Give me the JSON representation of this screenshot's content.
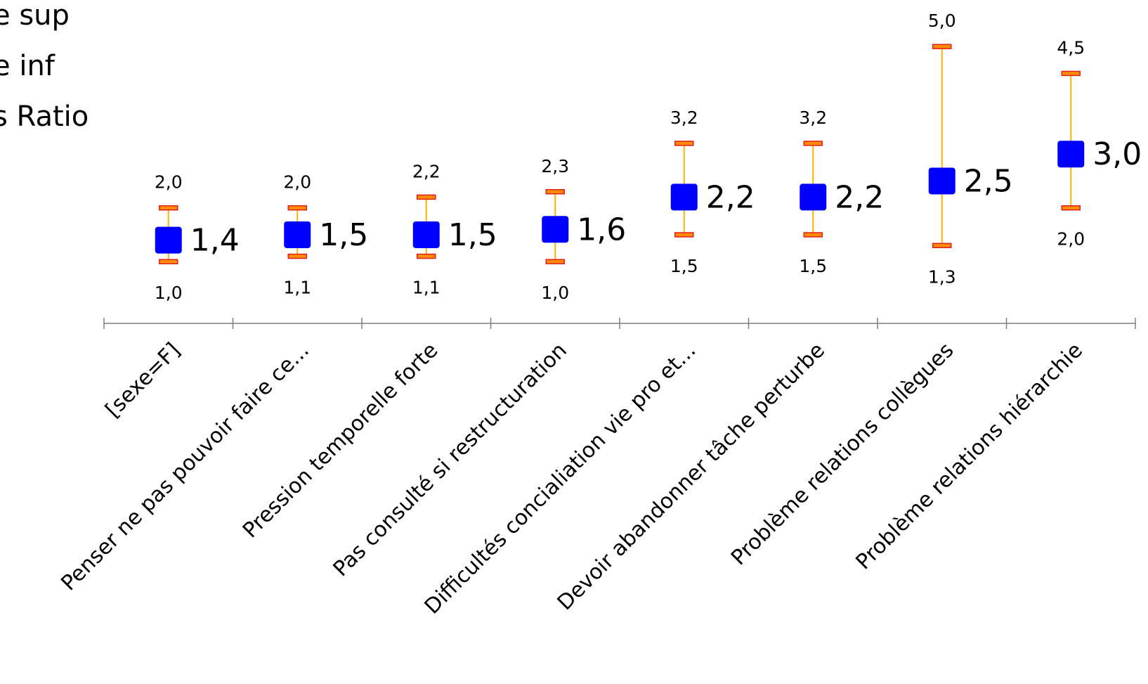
{
  "chart_data": {
    "type": "scatter",
    "legend": {
      "position": "top-left",
      "entries": [
        "e sup",
        "e inf",
        "s Ratio"
      ]
    },
    "categories": [
      "[sexe=F]",
      "Penser ne pas pouvoir faire ce...",
      "Pression temporelle forte",
      "Pas consulté si restructuration",
      "Difficultés concialiation vie pro et...",
      "Devoir abandonner tâche perturbe",
      "Problème relations collègues",
      "Problème relations hiérarchie"
    ],
    "series": [
      {
        "name": "e sup",
        "values": [
          2.0,
          2.0,
          2.2,
          2.3,
          3.2,
          3.2,
          5.0,
          4.5
        ],
        "labels": [
          "2,0",
          "2,0",
          "2,2",
          "2,3",
          "3,2",
          "3,2",
          "5,0",
          "4,5"
        ]
      },
      {
        "name": "e inf",
        "values": [
          1.0,
          1.1,
          1.1,
          1.0,
          1.5,
          1.5,
          1.3,
          2.0
        ],
        "labels": [
          "1,0",
          "1,1",
          "1,1",
          "1,0",
          "1,5",
          "1,5",
          "1,3",
          "2,0"
        ]
      },
      {
        "name": "s Ratio",
        "values": [
          1.4,
          1.5,
          1.5,
          1.6,
          2.2,
          2.2,
          2.5,
          3.0
        ],
        "labels": [
          "1,4",
          "1,5",
          "1,5",
          "1,6",
          "2,2",
          "2,2",
          "2,5",
          "3,0"
        ]
      }
    ],
    "yaxis_visible": false,
    "grid": false,
    "colors": {
      "marker": "#0000ff",
      "whisker": "#ffb300",
      "cap_fill": "#ff8c00",
      "cap_stroke": "#e02020",
      "axis": "#7f7f7f"
    }
  }
}
